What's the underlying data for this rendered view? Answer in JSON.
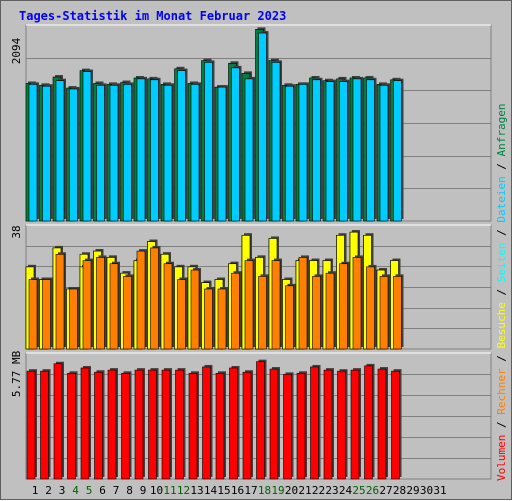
{
  "chart_data": {
    "type": "bar",
    "title": "Tages-Statistik im Monat Februar 2023",
    "categories": [
      "1",
      "2",
      "3",
      "4",
      "5",
      "6",
      "7",
      "8",
      "9",
      "10",
      "11",
      "12",
      "13",
      "14",
      "15",
      "16",
      "17",
      "18",
      "19",
      "20",
      "21",
      "22",
      "23",
      "24",
      "25",
      "26",
      "27",
      "28",
      "29",
      "30",
      "31"
    ],
    "weekend_days": [
      4,
      5,
      11,
      12,
      18,
      19,
      25,
      26
    ],
    "colors": {
      "title": "#0000ff",
      "background": "#c0c0c0",
      "grid": "#808080",
      "weekday_label": "#000000",
      "weekend_label": "#006000",
      "anfragen": "#008040",
      "dateien": "#00ccff",
      "seiten": "#00ffff",
      "besuche": "#ffff00",
      "rechner": "#ff8000",
      "volumen": "#ff0000"
    },
    "panels": [
      {
        "max_label": "2094",
        "ymax": 2094,
        "series": [
          {
            "name": "Anfragen",
            "values": [
              1500,
              1480,
              1570,
              1450,
              1640,
              1500,
              1490,
              1510,
              1560,
              1550,
              1490,
              1660,
              1500,
              1750,
              1460,
              1720,
              1610,
              2090,
              1750,
              1480,
              1490,
              1560,
              1530,
              1550,
              1560,
              1560,
              1490,
              1540
            ]
          },
          {
            "name": "Dateien",
            "values": [
              1490,
              1470,
              1530,
              1440,
              1630,
              1480,
              1480,
              1490,
              1550,
              1540,
              1480,
              1640,
              1490,
              1730,
              1460,
              1670,
              1550,
              2050,
              1730,
              1470,
              1490,
              1540,
              1520,
              1520,
              1550,
              1540,
              1480,
              1530
            ]
          }
        ]
      },
      {
        "max_label": "38",
        "ymax": 38,
        "series": [
          {
            "name": "Seiten",
            "values": [
              26,
              22,
              32,
              19,
              30,
              31,
              29,
              24,
              28,
              34,
              30,
              26,
              26,
              21,
              22,
              27,
              36,
              29,
              35,
              22,
              28,
              28,
              28,
              36,
              37,
              36,
              25,
              28
            ]
          },
          {
            "name": "Besuche",
            "values": [
              26,
              22,
              32,
              19,
              26,
              31,
              29,
              24,
              28,
              34,
              30,
              26,
              26,
              21,
              22,
              27,
              36,
              29,
              35,
              22,
              28,
              28,
              28,
              36,
              37,
              36,
              25,
              28
            ]
          },
          {
            "name": "Rechner",
            "values": [
              22,
              22,
              30,
              19,
              28,
              29,
              27,
              23,
              31,
              32,
              27,
              22,
              25,
              19,
              19,
              24,
              28,
              23,
              28,
              20,
              29,
              23,
              24,
              27,
              29,
              26,
              23,
              23
            ]
          }
        ]
      },
      {
        "max_label": "5.77 MB",
        "ymax": 5.77,
        "series": [
          {
            "name": "Volumen",
            "values": [
              5.1,
              5.1,
              5.45,
              5.0,
              5.25,
              5.05,
              5.15,
              5.0,
              5.15,
              5.15,
              5.15,
              5.15,
              5.0,
              5.3,
              5.0,
              5.25,
              5.05,
              5.55,
              5.2,
              4.95,
              5.0,
              5.3,
              5.15,
              5.1,
              5.15,
              5.35,
              5.2,
              5.1
            ]
          }
        ]
      }
    ],
    "legend": {
      "volumen": "Volumen",
      "rechner": "Rechner",
      "besuche": "Besuche",
      "seiten": "Seiten",
      "dateien": "Dateien",
      "anfragen": "Anfragen",
      "separator": " / "
    }
  }
}
